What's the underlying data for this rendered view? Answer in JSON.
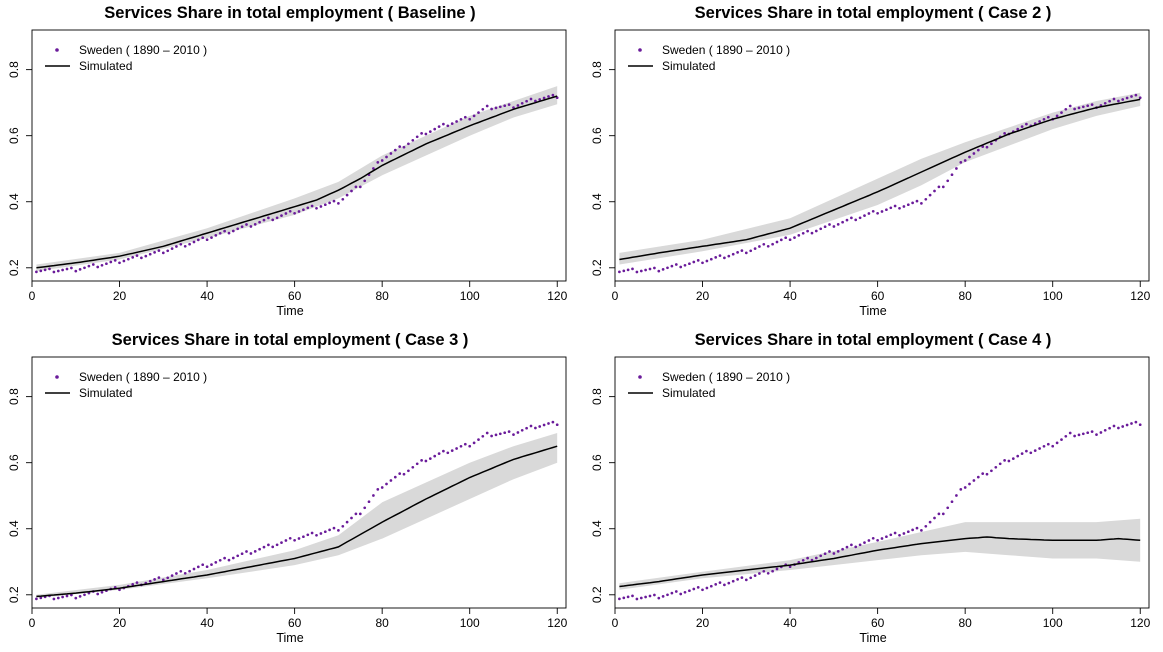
{
  "colors": {
    "observed": "#6a1b9a",
    "simulated": "#000000",
    "band": "#d9d9d9",
    "axis": "#000000"
  },
  "chart_data": [
    {
      "type": "line",
      "title": "Services Share in total employment ( Baseline )",
      "xlabel": "Time",
      "ylabel": "",
      "xlim": [
        0,
        122
      ],
      "ylim": [
        0.16,
        0.92
      ],
      "xticks": [
        0,
        20,
        40,
        60,
        80,
        100,
        120
      ],
      "yticks": [
        0.2,
        0.4,
        0.6,
        0.8
      ],
      "legend_position": "top-left",
      "series": [
        {
          "name": "Sweden ( 1890 – 2010 )",
          "style": "points",
          "x": [
            1,
            10,
            20,
            30,
            40,
            45,
            50,
            55,
            60,
            65,
            70,
            75,
            80,
            85,
            90,
            95,
            100,
            104,
            110,
            115,
            120
          ],
          "y": [
            0.19,
            0.195,
            0.22,
            0.25,
            0.29,
            0.31,
            0.33,
            0.35,
            0.37,
            0.385,
            0.4,
            0.45,
            0.53,
            0.57,
            0.61,
            0.635,
            0.655,
            0.685,
            0.69,
            0.71,
            0.72
          ]
        },
        {
          "name": "Simulated",
          "style": "line",
          "x": [
            1,
            10,
            20,
            30,
            40,
            50,
            60,
            65,
            70,
            75,
            80,
            90,
            100,
            110,
            120
          ],
          "y": [
            0.2,
            0.215,
            0.235,
            0.265,
            0.305,
            0.345,
            0.385,
            0.405,
            0.435,
            0.47,
            0.51,
            0.575,
            0.63,
            0.68,
            0.72
          ]
        }
      ],
      "band": {
        "x": [
          1,
          20,
          40,
          60,
          70,
          80,
          100,
          110,
          120
        ],
        "lower": [
          0.19,
          0.225,
          0.29,
          0.36,
          0.41,
          0.48,
          0.6,
          0.655,
          0.695
        ],
        "upper": [
          0.21,
          0.245,
          0.32,
          0.41,
          0.46,
          0.54,
          0.66,
          0.705,
          0.75
        ]
      }
    },
    {
      "type": "line",
      "title": "Services Share in total employment ( Case 2 )",
      "xlabel": "Time",
      "ylabel": "",
      "xlim": [
        0,
        122
      ],
      "ylim": [
        0.16,
        0.92
      ],
      "xticks": [
        0,
        20,
        40,
        60,
        80,
        100,
        120
      ],
      "yticks": [
        0.2,
        0.4,
        0.6,
        0.8
      ],
      "legend_position": "top-left",
      "series": [
        {
          "name": "Sweden ( 1890 – 2010 )",
          "style": "points",
          "x": [
            1,
            10,
            20,
            30,
            40,
            45,
            50,
            55,
            60,
            65,
            70,
            75,
            80,
            85,
            90,
            95,
            100,
            104,
            110,
            115,
            120
          ],
          "y": [
            0.19,
            0.195,
            0.22,
            0.25,
            0.29,
            0.31,
            0.33,
            0.35,
            0.37,
            0.385,
            0.4,
            0.45,
            0.53,
            0.57,
            0.61,
            0.635,
            0.655,
            0.685,
            0.69,
            0.71,
            0.72
          ]
        },
        {
          "name": "Simulated",
          "style": "line",
          "x": [
            1,
            10,
            20,
            30,
            40,
            50,
            60,
            70,
            80,
            90,
            100,
            110,
            120
          ],
          "y": [
            0.225,
            0.245,
            0.265,
            0.285,
            0.32,
            0.375,
            0.43,
            0.49,
            0.55,
            0.605,
            0.65,
            0.685,
            0.71
          ]
        }
      ],
      "band": {
        "x": [
          1,
          20,
          40,
          60,
          70,
          80,
          100,
          110,
          120
        ],
        "lower": [
          0.21,
          0.25,
          0.3,
          0.39,
          0.45,
          0.52,
          0.62,
          0.66,
          0.69
        ],
        "upper": [
          0.245,
          0.285,
          0.35,
          0.47,
          0.53,
          0.58,
          0.67,
          0.705,
          0.73
        ]
      }
    },
    {
      "type": "line",
      "title": "Services Share in total employment ( Case 3 )",
      "xlabel": "Time",
      "ylabel": "",
      "xlim": [
        0,
        122
      ],
      "ylim": [
        0.16,
        0.92
      ],
      "xticks": [
        0,
        20,
        40,
        60,
        80,
        100,
        120
      ],
      "yticks": [
        0.2,
        0.4,
        0.6,
        0.8
      ],
      "legend_position": "top-left",
      "series": [
        {
          "name": "Sweden ( 1890 – 2010 )",
          "style": "points",
          "x": [
            1,
            10,
            20,
            30,
            40,
            45,
            50,
            55,
            60,
            65,
            70,
            75,
            80,
            85,
            90,
            95,
            100,
            104,
            110,
            115,
            120
          ],
          "y": [
            0.19,
            0.195,
            0.22,
            0.25,
            0.29,
            0.31,
            0.33,
            0.35,
            0.37,
            0.385,
            0.4,
            0.45,
            0.53,
            0.57,
            0.61,
            0.635,
            0.655,
            0.685,
            0.69,
            0.71,
            0.72
          ]
        },
        {
          "name": "Simulated",
          "style": "line",
          "x": [
            1,
            10,
            20,
            30,
            40,
            50,
            60,
            70,
            80,
            90,
            100,
            110,
            120
          ],
          "y": [
            0.195,
            0.205,
            0.22,
            0.24,
            0.26,
            0.285,
            0.31,
            0.345,
            0.42,
            0.49,
            0.555,
            0.61,
            0.65
          ]
        }
      ],
      "band": {
        "x": [
          1,
          20,
          40,
          60,
          70,
          80,
          100,
          110,
          120
        ],
        "lower": [
          0.19,
          0.215,
          0.25,
          0.29,
          0.32,
          0.37,
          0.49,
          0.55,
          0.6
        ],
        "upper": [
          0.2,
          0.23,
          0.275,
          0.335,
          0.38,
          0.48,
          0.6,
          0.65,
          0.69
        ]
      }
    },
    {
      "type": "line",
      "title": "Services Share in total employment ( Case 4 )",
      "xlabel": "Time",
      "ylabel": "",
      "xlim": [
        0,
        122
      ],
      "ylim": [
        0.16,
        0.92
      ],
      "xticks": [
        0,
        20,
        40,
        60,
        80,
        100,
        120
      ],
      "yticks": [
        0.2,
        0.4,
        0.6,
        0.8
      ],
      "legend_position": "top-left",
      "series": [
        {
          "name": "Sweden ( 1890 – 2010 )",
          "style": "points",
          "x": [
            1,
            10,
            20,
            30,
            40,
            45,
            50,
            55,
            60,
            65,
            70,
            75,
            80,
            85,
            90,
            95,
            100,
            104,
            110,
            115,
            120
          ],
          "y": [
            0.19,
            0.195,
            0.22,
            0.25,
            0.29,
            0.31,
            0.33,
            0.35,
            0.37,
            0.385,
            0.4,
            0.45,
            0.53,
            0.57,
            0.61,
            0.635,
            0.655,
            0.685,
            0.69,
            0.71,
            0.72
          ]
        },
        {
          "name": "Simulated",
          "style": "line",
          "x": [
            1,
            10,
            20,
            30,
            40,
            50,
            60,
            70,
            80,
            85,
            90,
            100,
            110,
            115,
            120
          ],
          "y": [
            0.225,
            0.24,
            0.26,
            0.275,
            0.29,
            0.31,
            0.335,
            0.355,
            0.37,
            0.375,
            0.37,
            0.365,
            0.365,
            0.37,
            0.365
          ]
        }
      ],
      "band": {
        "x": [
          1,
          20,
          40,
          60,
          70,
          80,
          90,
          100,
          110,
          120
        ],
        "lower": [
          0.215,
          0.25,
          0.275,
          0.305,
          0.32,
          0.33,
          0.32,
          0.31,
          0.31,
          0.3
        ],
        "upper": [
          0.235,
          0.27,
          0.305,
          0.36,
          0.39,
          0.42,
          0.42,
          0.42,
          0.42,
          0.43
        ]
      }
    }
  ]
}
